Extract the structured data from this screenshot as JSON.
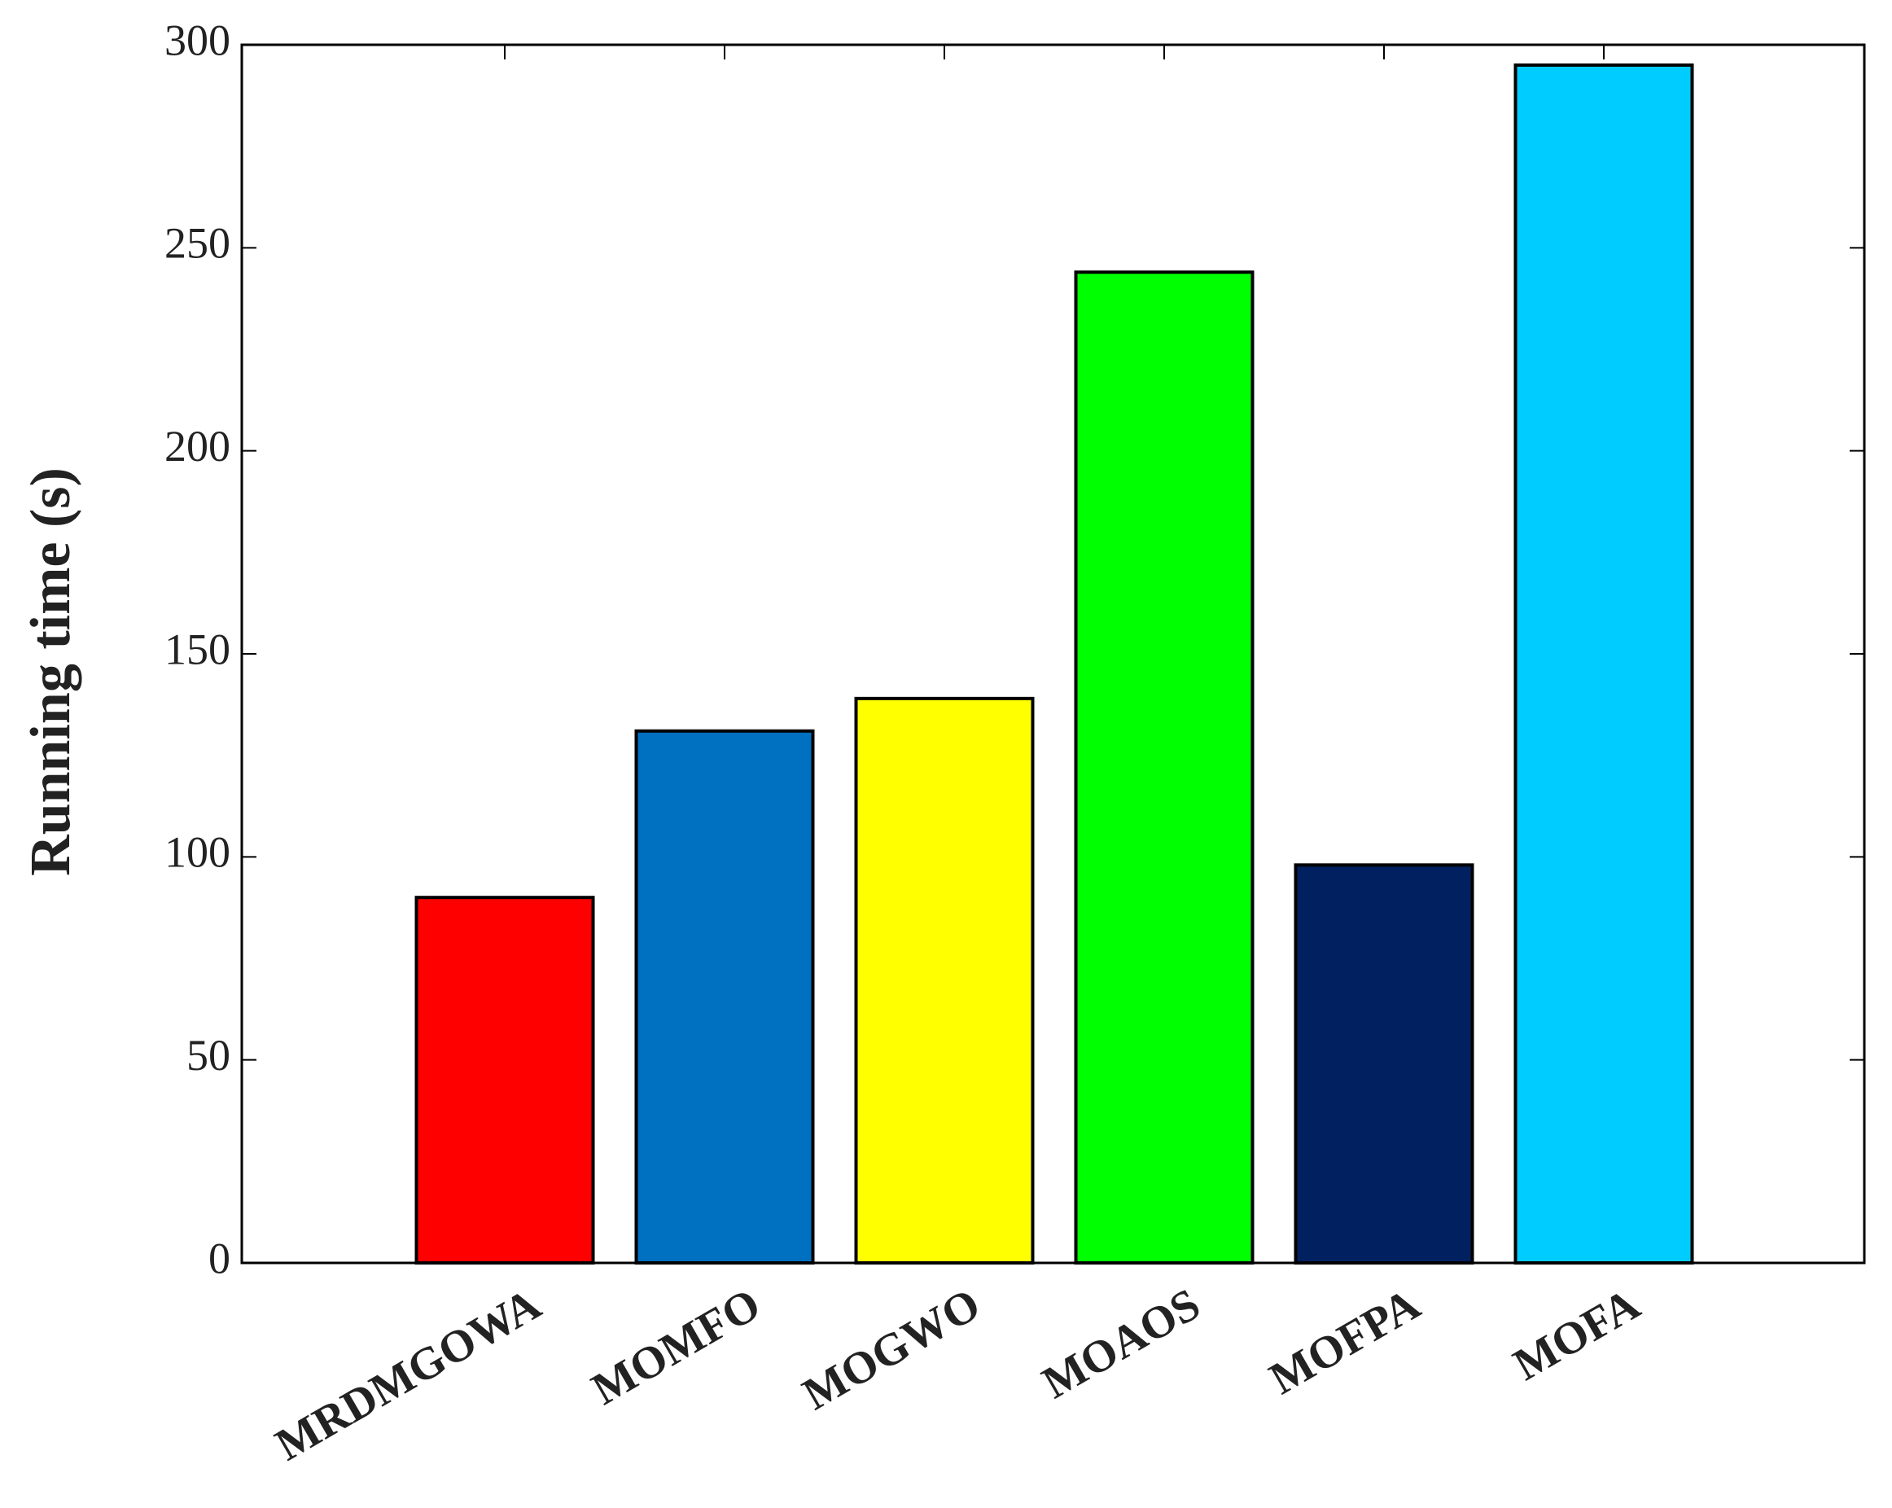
{
  "chart_data": {
    "type": "bar",
    "y_label": "Running time (s)",
    "categories": [
      "MRDMGOWA",
      "MOMFO",
      "MOGWO",
      "MOAOS",
      "MOFPA",
      "MOFA"
    ],
    "values": [
      90,
      131,
      139,
      244,
      98,
      295
    ],
    "colors": [
      "#ff0000",
      "#0070c0",
      "#ffff00",
      "#00ff00",
      "#002060",
      "#00ccff"
    ],
    "ylim": [
      0,
      300
    ],
    "yticks": [
      0,
      50,
      100,
      150,
      200,
      250,
      300
    ],
    "grid": false
  }
}
